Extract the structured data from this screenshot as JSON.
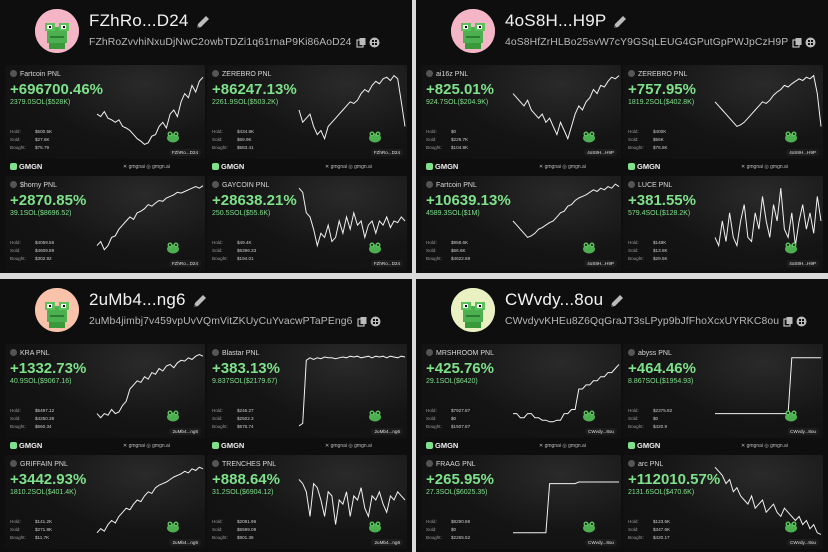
{
  "panels": [
    {
      "username": "FZhRo...D24",
      "address": "FZhRoZvvhiNxuDjNwC2owbTDZi1q61rnaP9Ki86AoD24",
      "avatar_color": "#f4b6c6",
      "cards": [
        {
          "token": "Fartcoin",
          "label": "PNL",
          "pnl": "+696700.46%",
          "sol": "2379.0SOL($528K)",
          "hold": "$500.5K",
          "sold": "$27.6K",
          "bought": "$75.79",
          "tag": "FZhRo...D24",
          "series": [
            0.45,
            0.42,
            0.48,
            0.4,
            0.38,
            0.35,
            0.38,
            0.3,
            0.28,
            0.25,
            0.2,
            0.15,
            0.12,
            0.08,
            0.1,
            0.18,
            0.2,
            0.3,
            0.35,
            0.28,
            0.45,
            0.5,
            0.42,
            0.6,
            0.7,
            0.65,
            0.8,
            0.72,
            0.85,
            0.9
          ]
        },
        {
          "token": "ZEREBRO",
          "label": "PNL",
          "pnl": "+86247.13%",
          "sol": "2261.9SOL($503.2K)",
          "hold": "$434.8K",
          "sold": "$69.9K",
          "bought": "$583.41",
          "tag": "FZhRo...D24",
          "series": [
            0.5,
            0.35,
            0.4,
            0.45,
            0.3,
            0.2,
            0.25,
            0.15,
            0.3,
            0.35,
            0.4,
            0.45,
            0.5,
            0.55,
            0.6,
            0.58,
            0.62,
            0.7,
            0.75,
            0.72,
            0.8,
            0.85,
            0.82,
            0.88,
            0.9,
            0.86,
            0.92,
            0.88,
            0.6,
            0.3
          ]
        },
        {
          "token": "$horny",
          "label": "PNL",
          "pnl": "+2870.85%",
          "sol": "39.1SOL($8696.52)",
          "hold": "$4059.56",
          "sold": "$4609.89",
          "bought": "$302.92",
          "tag": "FZhRo...D24",
          "series": [
            0.2,
            0.25,
            0.15,
            0.2,
            0.3,
            0.32,
            0.4,
            0.45,
            0.5,
            0.55,
            0.52,
            0.6,
            0.62,
            0.65,
            0.7,
            0.68,
            0.72,
            0.75,
            0.74,
            0.78,
            0.8,
            0.82,
            0.85,
            0.84,
            0.86,
            0.88,
            0.9,
            0.92,
            0.9,
            0.93
          ]
        },
        {
          "token": "GAYCOIN",
          "label": "PNL",
          "pnl": "+28638.21%",
          "sol": "250.5SOL($55.6K)",
          "hold": "$49.4K",
          "sold": "$6396.33",
          "bought": "$194.01",
          "tag": "FZhRo...D24",
          "series": [
            0.9,
            0.85,
            0.6,
            0.55,
            0.4,
            0.2,
            0.35,
            0.3,
            0.45,
            0.25,
            0.3,
            0.5,
            0.35,
            0.55,
            0.4,
            0.6,
            0.45,
            0.5,
            0.3,
            0.45,
            0.5,
            0.35,
            0.5,
            0.45,
            0.55,
            0.42,
            0.5,
            0.48,
            0.55,
            0.5
          ]
        }
      ]
    },
    {
      "username": "4oS8H...H9P",
      "address": "4oS8HfZrHLBo25svW7cY9GSqLEUG4GPutGpPWJpCzH9P",
      "avatar_color": "#f4b6c6",
      "cards": [
        {
          "token": "ai16z",
          "label": "PNL",
          "pnl": "+825.01%",
          "sol": "924.7SOL($204.9K)",
          "hold": "$0",
          "sold": "$229.7K",
          "bought": "$104.8K",
          "tag": "4oS8H...H9P",
          "series": [
            0.7,
            0.65,
            0.6,
            0.55,
            0.62,
            0.5,
            0.45,
            0.4,
            0.45,
            0.35,
            0.4,
            0.3,
            0.2,
            0.35,
            0.25,
            0.15,
            0.3,
            0.45,
            0.55,
            0.5,
            0.6,
            0.65,
            0.75,
            0.7,
            0.8,
            0.78,
            0.85,
            0.9,
            0.88,
            0.92
          ]
        },
        {
          "token": "ZEREBRO",
          "label": "PNL",
          "pnl": "+757.95%",
          "sol": "1819.2SOL($402.8K)",
          "hold": "$400K",
          "sold": "$56K",
          "bought": "$76.8K",
          "tag": "4oS8H...H9P",
          "series": [
            0.6,
            0.55,
            0.5,
            0.45,
            0.4,
            0.35,
            0.3,
            0.32,
            0.35,
            0.4,
            0.45,
            0.5,
            0.55,
            0.6,
            0.58,
            0.62,
            0.68,
            0.72,
            0.75,
            0.8,
            0.78,
            0.82,
            0.85,
            0.88,
            0.86,
            0.9,
            0.88,
            0.92,
            0.7,
            0.3
          ]
        },
        {
          "token": "Fartcoin",
          "label": "PNL",
          "pnl": "+10639.13%",
          "sol": "4589.3SOL($1M)",
          "hold": "$958.6K",
          "sold": "$66.6K",
          "bought": "$4622.69",
          "tag": "4oS8H...H9P",
          "series": [
            0.5,
            0.45,
            0.4,
            0.35,
            0.3,
            0.32,
            0.35,
            0.4,
            0.42,
            0.45,
            0.48,
            0.5,
            0.55,
            0.6,
            0.62,
            0.68,
            0.7,
            0.75,
            0.78,
            0.8,
            0.82,
            0.85,
            0.88,
            0.86,
            0.9,
            0.88,
            0.92,
            0.9,
            0.95,
            0.92
          ]
        },
        {
          "token": "LUCE",
          "label": "PNL",
          "pnl": "+381.55%",
          "sol": "579.4SOL($128.2K)",
          "hold": "$148K",
          "sold": "$13.8K",
          "bought": "$29.5K",
          "tag": "4oS8H...H9P",
          "series": [
            0.3,
            0.2,
            0.5,
            0.25,
            0.6,
            0.3,
            0.2,
            0.5,
            0.7,
            0.3,
            0.25,
            0.6,
            0.4,
            0.8,
            0.5,
            0.3,
            0.7,
            0.5,
            0.9,
            0.4,
            0.3,
            0.6,
            0.2,
            0.5,
            0.7,
            0.4,
            0.6,
            0.35,
            0.8,
            0.5
          ]
        }
      ]
    },
    {
      "username": "2uMb4...ng6",
      "address": "2uMb4jimbj7v459vpUvVQmVitZKUyCuYvacwPTaPEng6",
      "avatar_color": "#f9c2aa",
      "cards": [
        {
          "token": "KRA",
          "label": "PNL",
          "pnl": "+1332.73%",
          "sol": "40.9SOL($9067.16)",
          "hold": "$5497.12",
          "sold": "$4250.38",
          "bought": "$660.34",
          "tag": "2uMb4...ng6",
          "series": [
            0.2,
            0.15,
            0.2,
            0.18,
            0.25,
            0.2,
            0.22,
            0.3,
            0.35,
            0.5,
            0.55,
            0.6,
            0.58,
            0.65,
            0.62,
            0.7,
            0.68,
            0.75,
            0.72,
            0.78,
            0.8,
            0.76,
            0.82,
            0.85,
            0.84,
            0.88,
            0.86,
            0.9,
            0.92,
            0.9
          ]
        },
        {
          "token": "Blastar",
          "label": "PNL",
          "pnl": "+383.13%",
          "sol": "9.837SOL($2179.67)",
          "hold": "$246.27",
          "sold": "$2502.3",
          "bought": "$676.74",
          "tag": "2uMb4...ng6",
          "series": [
            0.05,
            0.08,
            0.85,
            0.88,
            0.86,
            0.88,
            0.87,
            0.89,
            0.88,
            0.88,
            0.87,
            0.88,
            0.89,
            0.88,
            0.9,
            0.89,
            0.9,
            0.88,
            0.89,
            0.9,
            0.88,
            0.9,
            0.89,
            0.9,
            0.88,
            0.9,
            0.89,
            0.88,
            0.9,
            0.89
          ]
        },
        {
          "token": "GRIFFAIN",
          "label": "PNL",
          "pnl": "+3442.93%",
          "sol": "1810.2SOL($401.4K)",
          "hold": "$141.2K",
          "sold": "$271.8K",
          "bought": "$11.7K",
          "tag": "2uMb4...ng6",
          "series": [
            0.1,
            0.15,
            0.12,
            0.2,
            0.25,
            0.22,
            0.3,
            0.35,
            0.4,
            0.38,
            0.45,
            0.5,
            0.48,
            0.55,
            0.6,
            0.58,
            0.65,
            0.68,
            0.7,
            0.72,
            0.75,
            0.78,
            0.8,
            0.82,
            0.85,
            0.83,
            0.88,
            0.86,
            0.9,
            0.88
          ]
        },
        {
          "token": "TRENCHES",
          "label": "PNL",
          "pnl": "+888.64%",
          "sol": "31.2SOL($6904.12)",
          "hold": "$2081.96",
          "sold": "$5599.09",
          "bought": "$901.36",
          "tag": "2uMb4...ng6",
          "series": [
            0.75,
            0.7,
            0.6,
            0.3,
            0.7,
            0.65,
            0.5,
            0.3,
            0.6,
            0.55,
            0.2,
            0.5,
            0.45,
            0.6,
            0.3,
            0.55,
            0.5,
            0.65,
            0.4,
            0.3,
            0.55,
            0.5,
            0.6,
            0.45,
            0.35,
            0.55,
            0.5,
            0.6,
            0.55,
            0.5
          ]
        }
      ]
    },
    {
      "username": "CWvdy...8ou",
      "address": "CWvdyvKHEu8Z6QqGraJT3sLPyp9bJfFhoXcxUYRKC8ou",
      "avatar_color": "#e9f0c2",
      "cards": [
        {
          "token": "MRSHROOM",
          "label": "PNL",
          "pnl": "+425.76%",
          "sol": "29.1SOL($6420)",
          "hold": "$7927.87",
          "sold": "$0",
          "bought": "$1507.87",
          "tag": "CWvdy...8ou",
          "series": [
            0.2,
            0.2,
            0.15,
            0.15,
            0.2,
            0.2,
            0.15,
            0.15,
            0.12,
            0.12,
            0.1,
            0.1,
            0.12,
            0.12,
            0.2,
            0.2,
            0.25,
            0.25,
            0.5,
            0.5,
            0.55,
            0.55,
            0.6,
            0.6,
            0.65,
            0.65,
            0.7,
            0.7,
            0.75,
            0.8
          ]
        },
        {
          "token": "abyss",
          "label": "PNL",
          "pnl": "+464.46%",
          "sol": "8.867SOL($1954.93)",
          "hold": "$2375.82",
          "sold": "$0",
          "bought": "$420.9",
          "tag": "CWvdy...8ou",
          "series": [
            0.2,
            0.2,
            0.2,
            0.2,
            0.2,
            0.2,
            0.2,
            0.2,
            0.2,
            0.2,
            0.2,
            0.2,
            0.2,
            0.2,
            0.2,
            0.2,
            0.2,
            0.2,
            0.2,
            0.2,
            0.2,
            0.88,
            0.88,
            0.88,
            0.88,
            0.88,
            0.88,
            0.88,
            0.88,
            0.88
          ]
        },
        {
          "token": "FRAAG",
          "label": "PNL",
          "pnl": "+265.95%",
          "sol": "27.3SOL($6025.35)",
          "hold": "$8290.86",
          "sold": "$0",
          "bought": "$2265.52",
          "tag": "CWvdy...8ou",
          "series": [
            0.1,
            0.1,
            0.1,
            0.1,
            0.1,
            0.1,
            0.1,
            0.1,
            0.1,
            0.1,
            0.7,
            0.7,
            0.7,
            0.7,
            0.7,
            0.7,
            0.7,
            0.7,
            0.72,
            0.72,
            0.72,
            0.72,
            0.72,
            0.72,
            0.72,
            0.72,
            0.72,
            0.72,
            0.72,
            0.72
          ]
        },
        {
          "token": "arc",
          "label": "PNL",
          "pnl": "+112010.57%",
          "sol": "2131.6SOL($470.6K)",
          "hold": "$123.5K",
          "sold": "$347.6K",
          "bought": "$420.17",
          "tag": "CWvdy...8ou",
          "series": [
            0.9,
            0.85,
            0.8,
            0.7,
            0.75,
            0.6,
            0.65,
            0.55,
            0.5,
            0.45,
            0.55,
            0.4,
            0.45,
            0.5,
            0.35,
            0.4,
            0.45,
            0.35,
            0.3,
            0.4,
            0.35,
            0.3,
            0.25,
            0.3,
            0.2,
            0.25,
            0.15,
            0.2,
            0.1,
            0.08
          ]
        }
      ]
    }
  ],
  "labels": {
    "hold": "Hold:",
    "sold": "Sold:",
    "bought": "Bought:",
    "brand": "GMGN",
    "social_x": "gmgnai",
    "social_web": "gmgn.ai"
  },
  "colors": {
    "profit": "#7ee08a",
    "line": "#f2f2f2",
    "bg": "#0e0e0e"
  }
}
